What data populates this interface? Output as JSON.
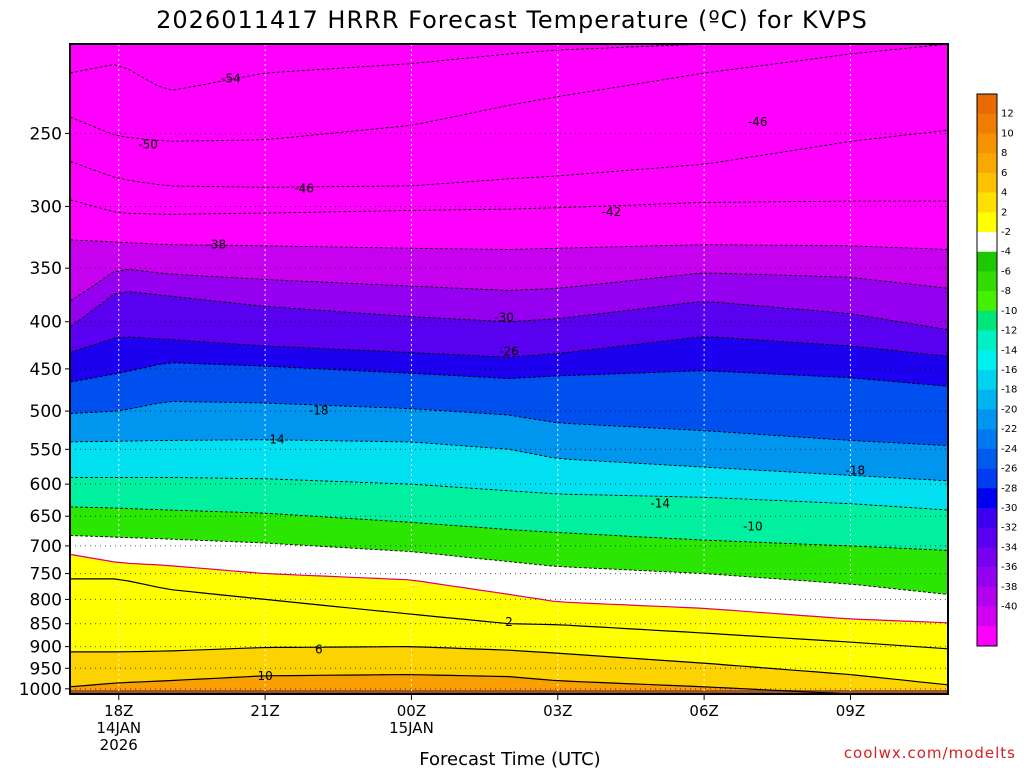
{
  "chart_data": {
    "type": "heatmap",
    "title": "2026011417 HRRR Forecast Temperature (ºC) for KVPS",
    "xlabel": "Forecast Time (UTC)",
    "ylabel": "",
    "credit": "coolwx.com/modelts",
    "units": "°C",
    "x_ticks": [
      {
        "hour": 0,
        "lines": [
          "18Z",
          "14JAN",
          "2026"
        ]
      },
      {
        "hour": 3,
        "lines": [
          "21Z"
        ]
      },
      {
        "hour": 6,
        "lines": [
          "00Z",
          "15JAN"
        ]
      },
      {
        "hour": 9,
        "lines": [
          "03Z"
        ]
      },
      {
        "hour": 12,
        "lines": [
          "06Z"
        ]
      },
      {
        "hour": 15,
        "lines": [
          "09Z"
        ]
      }
    ],
    "x_range_hours": [
      -1,
      17
    ],
    "pressure_ticks": [
      250,
      300,
      350,
      400,
      450,
      500,
      550,
      600,
      650,
      700,
      750,
      800,
      850,
      900,
      950,
      1000
    ],
    "y_range_hPa": [
      200,
      1013
    ],
    "colorbar": {
      "labels": [
        "12",
        "10",
        "8",
        "6",
        "4",
        "2",
        "-2",
        "-4",
        "-6",
        "-8",
        "-10",
        "-12",
        "-14",
        "-16",
        "-18",
        "-20",
        "-22",
        "-24",
        "-26",
        "-28",
        "-30",
        "-32",
        "-34",
        "-36",
        "-38",
        "-40"
      ],
      "colors": [
        "#e86a00",
        "#f07d00",
        "#f59200",
        "#f8a800",
        "#fcc200",
        "#fee000",
        "#ffff00",
        "#ffffff",
        "#1ec800",
        "#32dc00",
        "#46f000",
        "#00e67a",
        "#00f0c4",
        "#00f0f0",
        "#00d2f0",
        "#00b4f0",
        "#0096f0",
        "#0078f0",
        "#005af0",
        "#003cf0",
        "#0000f0",
        "#3c00f0",
        "#5a00f0",
        "#7800f0",
        "#9600f0",
        "#b400f0",
        "#d200f0",
        "#ff00ff"
      ]
    },
    "isotherm_profiles": {
      "hours": [
        -1,
        0,
        1,
        3,
        6,
        8,
        9,
        12,
        15,
        17
      ],
      "lines": [
        {
          "temp": -54,
          "p": [
            215,
            210,
            225,
            215,
            210,
            205,
            203,
            200,
            200,
            200
          ]
        },
        {
          "temp": -50,
          "p": [
            240,
            252,
            255,
            254,
            245,
            233,
            228,
            215,
            205,
            200
          ]
        },
        {
          "temp": -46,
          "p": [
            268,
            280,
            285,
            286,
            285,
            280,
            278,
            270,
            255,
            248
          ]
        },
        {
          "temp": -42,
          "p": [
            295,
            305,
            306,
            305,
            303,
            302,
            301,
            297,
            296,
            296
          ]
        },
        {
          "temp": -38,
          "p": [
            326,
            328,
            330,
            331,
            333,
            334,
            333,
            330,
            331,
            334
          ]
        },
        {
          "temp": -34,
          "p": [
            380,
            350,
            355,
            360,
            366,
            370,
            368,
            354,
            358,
            368
          ]
        },
        {
          "temp": -30,
          "p": [
            405,
            370,
            375,
            385,
            395,
            400,
            397,
            380,
            392,
            408
          ]
        },
        {
          "temp": -26,
          "p": [
            432,
            415,
            418,
            425,
            432,
            437,
            433,
            415,
            425,
            436
          ]
        },
        {
          "temp": -22,
          "p": [
            465,
            455,
            443,
            447,
            455,
            461,
            458,
            452,
            460,
            470
          ]
        },
        {
          "temp": -18,
          "p": [
            503,
            500,
            488,
            490,
            497,
            505,
            515,
            525,
            538,
            545
          ]
        },
        {
          "temp": -14,
          "p": [
            540,
            539,
            538,
            537,
            540,
            550,
            563,
            575,
            587,
            595
          ]
        },
        {
          "temp": -10,
          "p": [
            590,
            590,
            590,
            592,
            600,
            610,
            615,
            620,
            630,
            640
          ]
        },
        {
          "temp": -6,
          "p": [
            635,
            637,
            640,
            645,
            660,
            672,
            677,
            690,
            700,
            708
          ]
        },
        {
          "temp": -2,
          "p": [
            682,
            685,
            688,
            695,
            710,
            728,
            737,
            750,
            770,
            790
          ]
        },
        {
          "temp": 2,
          "p": [
            715,
            730,
            735,
            750,
            762,
            790,
            805,
            818,
            840,
            848
          ]
        }
      ],
      "surface_lines": [
        {
          "temp": 2,
          "p": [
            760,
            760,
            780,
            800,
            830,
            850,
            852,
            870,
            890,
            905
          ]
        },
        {
          "temp": 6,
          "p": [
            912,
            912,
            910,
            902,
            900,
            908,
            915,
            938,
            965,
            990
          ]
        },
        {
          "temp": 10,
          "p": [
            995,
            985,
            980,
            968,
            965,
            970,
            980,
            995,
            1013,
            1013
          ]
        }
      ]
    },
    "contour_labels": [
      {
        "text": "-54",
        "hour": 2.3,
        "p": 218
      },
      {
        "text": "-50",
        "hour": 0.6,
        "p": 257
      },
      {
        "text": "-46",
        "hour": 3.8,
        "p": 287
      },
      {
        "text": "-46",
        "hour": 13.1,
        "p": 243
      },
      {
        "text": "-42",
        "hour": 10.1,
        "p": 304
      },
      {
        "text": "-38",
        "hour": 2.0,
        "p": 330
      },
      {
        "text": "-30",
        "hour": 7.9,
        "p": 396
      },
      {
        "text": "-26",
        "hour": 8.0,
        "p": 431
      },
      {
        "text": "-18",
        "hour": 4.1,
        "p": 499
      },
      {
        "text": "-18",
        "hour": 15.1,
        "p": 580
      },
      {
        "text": "-14",
        "hour": 3.2,
        "p": 537
      },
      {
        "text": "-14",
        "hour": 11.1,
        "p": 630
      },
      {
        "text": "-10",
        "hour": 13.0,
        "p": 667
      },
      {
        "text": "2",
        "hour": 8.0,
        "p": 846
      },
      {
        "text": "6",
        "hour": 4.1,
        "p": 906
      },
      {
        "text": "10",
        "hour": 3.0,
        "p": 968
      }
    ]
  }
}
